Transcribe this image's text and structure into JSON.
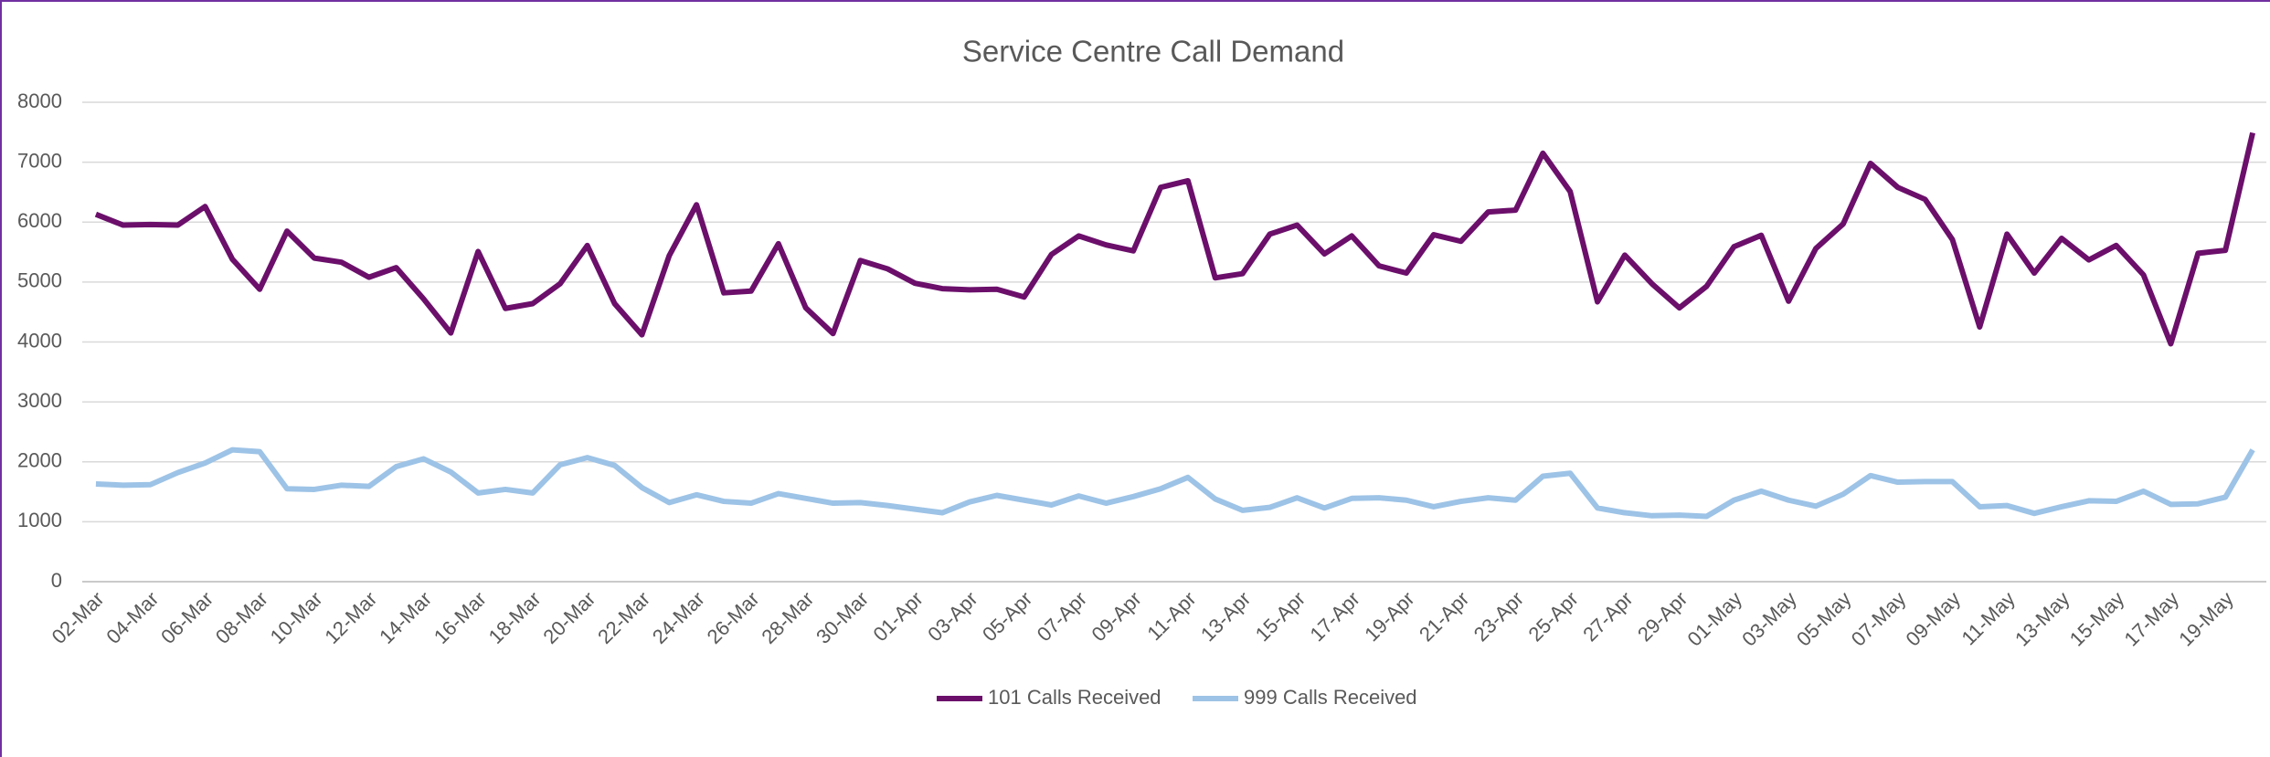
{
  "chart_data": {
    "type": "line",
    "title": "Service Centre Call Demand",
    "categories": [
      "02-Mar",
      null,
      "04-Mar",
      null,
      "06-Mar",
      null,
      "08-Mar",
      null,
      "10-Mar",
      null,
      "12-Mar",
      null,
      "14-Mar",
      null,
      "16-Mar",
      null,
      "18-Mar",
      null,
      "20-Mar",
      null,
      "22-Mar",
      null,
      "24-Mar",
      null,
      "26-Mar",
      null,
      "28-Mar",
      null,
      "30-Mar",
      null,
      "01-Apr",
      null,
      "03-Apr",
      null,
      "05-Apr",
      null,
      "07-Apr",
      null,
      "09-Apr",
      null,
      "11-Apr",
      null,
      "13-Apr",
      null,
      "15-Apr",
      null,
      "17-Apr",
      null,
      "19-Apr",
      null,
      "21-Apr",
      null,
      "23-Apr",
      null,
      "25-Apr",
      null,
      "27-Apr",
      null,
      "29-Apr",
      null,
      "01-May",
      null,
      "03-May",
      null,
      "05-May",
      null,
      "07-May",
      null,
      "09-May",
      null,
      "11-May",
      null,
      "13-May",
      null,
      "15-May",
      null,
      "17-May",
      null,
      "19-May",
      null
    ],
    "series": [
      {
        "name": "101 Calls Received",
        "color": "#6b0f6b",
        "values": [
          6130,
          5950,
          5960,
          5950,
          6260,
          5380,
          4880,
          5850,
          5400,
          5330,
          5080,
          5240,
          4720,
          4150,
          5510,
          4560,
          4640,
          4970,
          5610,
          4640,
          4120,
          5440,
          6290,
          4820,
          4850,
          5640,
          4570,
          4140,
          5360,
          5220,
          4980,
          4890,
          4870,
          4880,
          4750,
          5460,
          5770,
          5620,
          5520,
          6580,
          6690,
          5070,
          5140,
          5800,
          5950,
          5470,
          5770,
          5270,
          5150,
          5790,
          5680,
          6170,
          6200,
          7150,
          6510,
          4670,
          5450,
          4970,
          4570,
          4930,
          5590,
          5780,
          4680,
          5560,
          5970,
          6980,
          6580,
          6380,
          5710,
          4250,
          5800,
          5150,
          5730,
          5370,
          5610,
          5120,
          3970,
          5480,
          5530,
          7490
        ]
      },
      {
        "name": "999 Calls Received",
        "color": "#9dc3e6",
        "values": [
          1630,
          1610,
          1620,
          1820,
          1980,
          2200,
          2170,
          1550,
          1540,
          1610,
          1590,
          1920,
          2050,
          1830,
          1480,
          1540,
          1480,
          1950,
          2070,
          1940,
          1570,
          1320,
          1450,
          1340,
          1310,
          1470,
          1390,
          1310,
          1320,
          1270,
          1210,
          1150,
          1330,
          1440,
          1360,
          1280,
          1430,
          1310,
          1420,
          1550,
          1740,
          1380,
          1190,
          1240,
          1400,
          1230,
          1390,
          1400,
          1360,
          1250,
          1340,
          1400,
          1360,
          1760,
          1810,
          1230,
          1150,
          1100,
          1110,
          1090,
          1360,
          1510,
          1360,
          1260,
          1460,
          1770,
          1660,
          1670,
          1670,
          1250,
          1270,
          1140,
          1250,
          1350,
          1340,
          1510,
          1290,
          1300,
          1410,
          2200
        ]
      }
    ],
    "ylim": [
      0,
      8000
    ],
    "yticks": [
      0,
      1000,
      2000,
      3000,
      4000,
      5000,
      6000,
      7000,
      8000
    ],
    "grid": true,
    "legend": "bottom"
  }
}
